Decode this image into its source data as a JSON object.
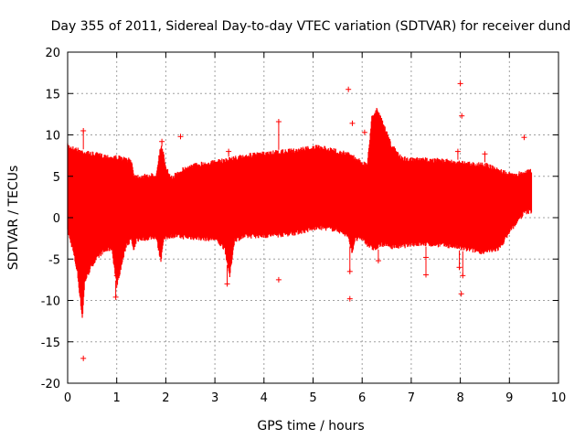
{
  "chart_data": {
    "type": "scatter",
    "title": "Day 355 of 2011, Sidereal Day-to-day VTEC variation (SDTVAR) for receiver dund",
    "xlabel": "GPS time / hours",
    "ylabel": "SDTVAR / TECUs",
    "xlim": [
      0,
      10
    ],
    "ylim": [
      -20,
      20
    ],
    "x_ticks": [
      "0",
      "1",
      "2",
      "3",
      "4",
      "5",
      "6",
      "7",
      "8",
      "9",
      "10"
    ],
    "y_ticks": [
      "20",
      "15",
      "10",
      "5",
      "0",
      "-5",
      "-10",
      "-15",
      "-20"
    ],
    "grid": true,
    "marker": "+",
    "series_color": "#ff0000",
    "envelope": {
      "x": [
        0.0,
        0.1,
        0.2,
        0.3,
        0.35,
        0.5,
        0.7,
        0.9,
        1.0,
        1.2,
        1.3,
        1.35,
        1.4,
        1.6,
        1.8,
        1.9,
        1.95,
        2.0,
        2.1,
        2.2,
        2.3,
        2.5,
        2.7,
        3.0,
        3.2,
        3.3,
        3.4,
        3.6,
        3.8,
        4.0,
        4.3,
        4.6,
        4.9,
        5.1,
        5.3,
        5.5,
        5.7,
        5.8,
        5.85,
        6.0,
        6.1,
        6.2,
        6.3,
        6.4,
        6.6,
        6.8,
        7.0,
        7.3,
        7.6,
        7.9,
        8.0,
        8.2,
        8.5,
        8.8,
        9.0,
        9.2,
        9.3,
        9.45
      ],
      "upper": [
        9.0,
        8.7,
        8.5,
        8.3,
        8.2,
        8.0,
        7.8,
        7.6,
        7.6,
        7.3,
        7.2,
        5.5,
        5.3,
        5.3,
        5.5,
        9.0,
        8.0,
        6.5,
        5.0,
        5.5,
        6.0,
        6.5,
        6.8,
        7.0,
        7.2,
        7.4,
        7.5,
        7.7,
        7.9,
        8.0,
        8.2,
        8.4,
        8.7,
        8.8,
        8.6,
        8.3,
        8.0,
        7.8,
        7.5,
        7.0,
        6.5,
        12.5,
        13.5,
        12.0,
        9.0,
        7.5,
        7.3,
        7.3,
        7.2,
        7.0,
        7.0,
        6.8,
        6.7,
        6.0,
        5.5,
        5.6,
        5.8,
        6.0
      ],
      "lower": [
        -2.0,
        -4.0,
        -7.0,
        -12.5,
        -8.0,
        -6.0,
        -4.5,
        -4.0,
        -8.5,
        -3.5,
        -3.0,
        -4.5,
        -3.0,
        -2.8,
        -2.6,
        -5.5,
        -3.0,
        -2.8,
        -2.5,
        -2.5,
        -2.6,
        -2.7,
        -2.8,
        -2.9,
        -4.0,
        -7.5,
        -3.0,
        -2.6,
        -2.5,
        -2.5,
        -2.4,
        -2.2,
        -1.8,
        -1.5,
        -1.6,
        -1.8,
        -2.5,
        -4.5,
        -3.0,
        -2.8,
        -3.5,
        -4.0,
        -4.0,
        -3.5,
        -3.8,
        -3.8,
        -3.5,
        -3.5,
        -3.6,
        -3.8,
        -4.0,
        -4.2,
        -4.5,
        -4.0,
        -2.0,
        -0.5,
        0.3,
        0.5
      ]
    },
    "outliers": [
      {
        "x": 0.32,
        "y": -17.0
      },
      {
        "x": 0.32,
        "y": 10.5
      },
      {
        "x": 0.98,
        "y": -9.6
      },
      {
        "x": 1.0,
        "y": -7.0
      },
      {
        "x": 1.92,
        "y": 9.2
      },
      {
        "x": 2.3,
        "y": 9.8
      },
      {
        "x": 3.25,
        "y": -8.0
      },
      {
        "x": 3.28,
        "y": 8.0
      },
      {
        "x": 4.3,
        "y": 11.6
      },
      {
        "x": 4.3,
        "y": -7.5
      },
      {
        "x": 5.72,
        "y": 15.5
      },
      {
        "x": 5.75,
        "y": -9.8
      },
      {
        "x": 5.8,
        "y": 11.4
      },
      {
        "x": 5.75,
        "y": -6.5
      },
      {
        "x": 6.05,
        "y": 10.3
      },
      {
        "x": 6.33,
        "y": -5.2
      },
      {
        "x": 7.3,
        "y": -4.8
      },
      {
        "x": 7.3,
        "y": -6.9
      },
      {
        "x": 7.95,
        "y": 8.0
      },
      {
        "x": 8.0,
        "y": 16.2
      },
      {
        "x": 8.03,
        "y": 12.3
      },
      {
        "x": 8.02,
        "y": -9.2
      },
      {
        "x": 8.05,
        "y": -7.0
      },
      {
        "x": 7.98,
        "y": -6.0
      },
      {
        "x": 8.5,
        "y": 7.7
      },
      {
        "x": 9.3,
        "y": 9.7
      }
    ]
  }
}
